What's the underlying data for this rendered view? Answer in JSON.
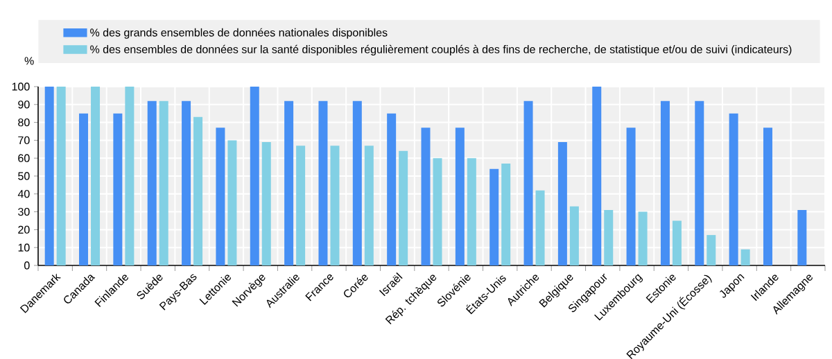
{
  "chart_data": {
    "type": "bar",
    "ylabel": "%",
    "categories": [
      "Danemark",
      "Canada",
      "Finlande",
      "Suède",
      "Pays-Bas",
      "Lettonie",
      "Norvège",
      "Australie",
      "France",
      "Corée",
      "Israël",
      "Rép. tchèque",
      "Slovénie",
      "États-Unis",
      "Autriche",
      "Belgique",
      "Singapour",
      "Luxembourg",
      "Estonie",
      "Royaume-Uni (Écosse)",
      "Japon",
      "Irlande",
      "Allemagne"
    ],
    "series": [
      {
        "name": "% des grands ensembles de données nationales disponibles",
        "color": "#468ff4",
        "values": [
          100,
          85,
          85,
          92,
          92,
          77,
          100,
          92,
          92,
          92,
          85,
          77,
          77,
          54,
          92,
          69,
          100,
          77,
          92,
          92,
          85,
          77,
          31
        ]
      },
      {
        "name": "% des ensembles de données sur la santé disponibles régulièrement couplés à des fins de recherche, de statistique et/ou de suivi (indicateurs)",
        "color": "#82d0e4",
        "values": [
          100,
          100,
          100,
          92,
          83,
          70,
          69,
          67,
          67,
          67,
          64,
          60,
          60,
          57,
          42,
          33,
          31,
          30,
          25,
          17,
          9,
          null,
          null
        ]
      }
    ],
    "ylim": [
      0,
      100
    ],
    "yticks": [
      0,
      10,
      20,
      30,
      40,
      50,
      60,
      70,
      80,
      90,
      100
    ],
    "grid": true,
    "legend": "top"
  }
}
